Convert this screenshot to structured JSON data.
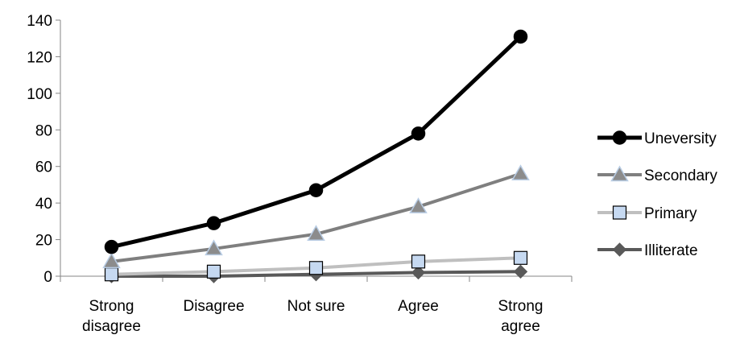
{
  "chart_data": {
    "type": "line",
    "title": "",
    "xlabel": "",
    "ylabel": "",
    "categories": [
      [
        "Strong",
        "disagree"
      ],
      [
        "Disagree"
      ],
      [
        "Not sure"
      ],
      [
        "Agree"
      ],
      [
        "Strong",
        "agree"
      ]
    ],
    "ylim": [
      0,
      140
    ],
    "yticks": [
      "0",
      "20",
      "40",
      "60",
      "80",
      "100",
      "120",
      "140"
    ],
    "grid": false,
    "legend_position": "right",
    "series": [
      {
        "name": "Uneversity",
        "values": [
          16,
          29,
          47,
          78,
          131
        ],
        "color": "#000000",
        "marker": "circle",
        "marker_fill": "#000000",
        "marker_stroke": "#000000",
        "line_width": 5
      },
      {
        "name": "Secondary",
        "values": [
          8,
          15,
          23,
          38,
          56
        ],
        "color": "#7f7f7f",
        "marker": "triangle",
        "marker_fill": "#8c8c8c",
        "marker_stroke": "#b8cce4",
        "line_width": 4
      },
      {
        "name": "Primary",
        "values": [
          1,
          2.5,
          4.5,
          8,
          10
        ],
        "color": "#bfbfbf",
        "marker": "square",
        "marker_fill": "#c6d9f1",
        "marker_stroke": "#000000",
        "line_width": 4
      },
      {
        "name": "Illiterate",
        "values": [
          0,
          0,
          1,
          2,
          2.5
        ],
        "color": "#595959",
        "marker": "diamond",
        "marker_fill": "#595959",
        "marker_stroke": "#595959",
        "line_width": 4
      }
    ]
  }
}
